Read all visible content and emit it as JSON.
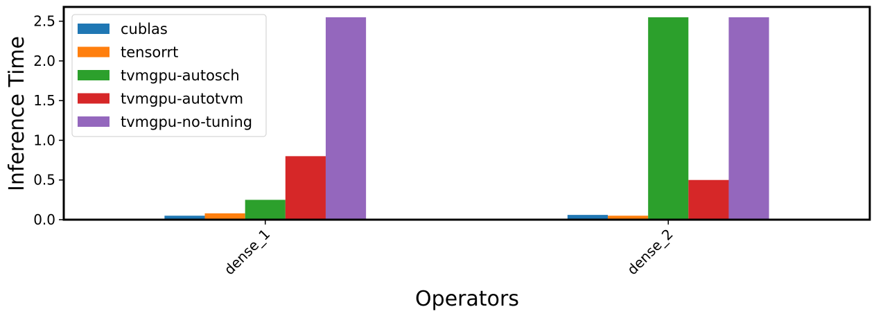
{
  "chart_data": {
    "type": "bar",
    "title": "",
    "xlabel": "Operators",
    "ylabel": "Inference Time",
    "categories": [
      "dense_1",
      "dense_2"
    ],
    "series": [
      {
        "name": "cublas",
        "color": "#1f77b4",
        "values": [
          0.05,
          0.06
        ]
      },
      {
        "name": "tensorrt",
        "color": "#ff7f0e",
        "values": [
          0.08,
          0.05
        ]
      },
      {
        "name": "tvmgpu-autosch",
        "color": "#2ca02c",
        "values": [
          0.25,
          2.55
        ]
      },
      {
        "name": "tvmgpu-autotvm",
        "color": "#d62728",
        "values": [
          0.8,
          0.5
        ]
      },
      {
        "name": "tvmgpu-no-tuning",
        "color": "#9467bd",
        "values": [
          2.55,
          2.55
        ]
      }
    ],
    "ylim": [
      0,
      2.68
    ],
    "yticks": [
      "0.0",
      "0.5",
      "1.0",
      "1.5",
      "2.0",
      "2.5"
    ],
    "grid": false,
    "legend_position": "top-left"
  }
}
